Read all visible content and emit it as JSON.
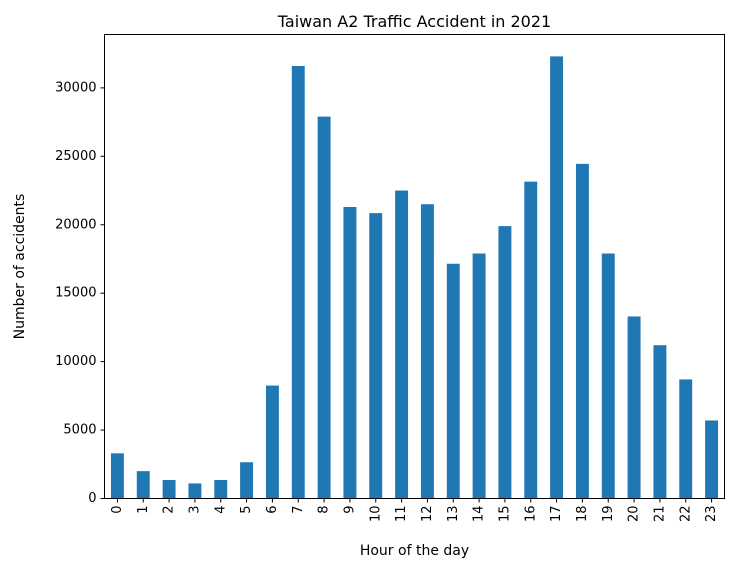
{
  "chart_data": {
    "type": "bar",
    "title": "Taiwan A2 Traffic Accident in 2021",
    "xlabel": "Hour of the day",
    "ylabel": "Number of accidents",
    "categories": [
      "0",
      "1",
      "2",
      "3",
      "4",
      "5",
      "6",
      "7",
      "8",
      "9",
      "10",
      "11",
      "12",
      "13",
      "14",
      "15",
      "16",
      "17",
      "18",
      "19",
      "20",
      "21",
      "22",
      "23"
    ],
    "values": [
      3300,
      2000,
      1350,
      1100,
      1350,
      2650,
      8250,
      31600,
      27900,
      21300,
      20850,
      22500,
      21500,
      17150,
      17900,
      19900,
      23150,
      32300,
      24450,
      17900,
      13300,
      11200,
      8700,
      5700
    ],
    "ylim": [
      0,
      33900
    ],
    "yticks": [
      0,
      5000,
      10000,
      15000,
      20000,
      25000,
      30000
    ],
    "bar_color": "#1f77b4",
    "grid": false,
    "legend": "none",
    "x_tick_rotation": "vertical"
  }
}
